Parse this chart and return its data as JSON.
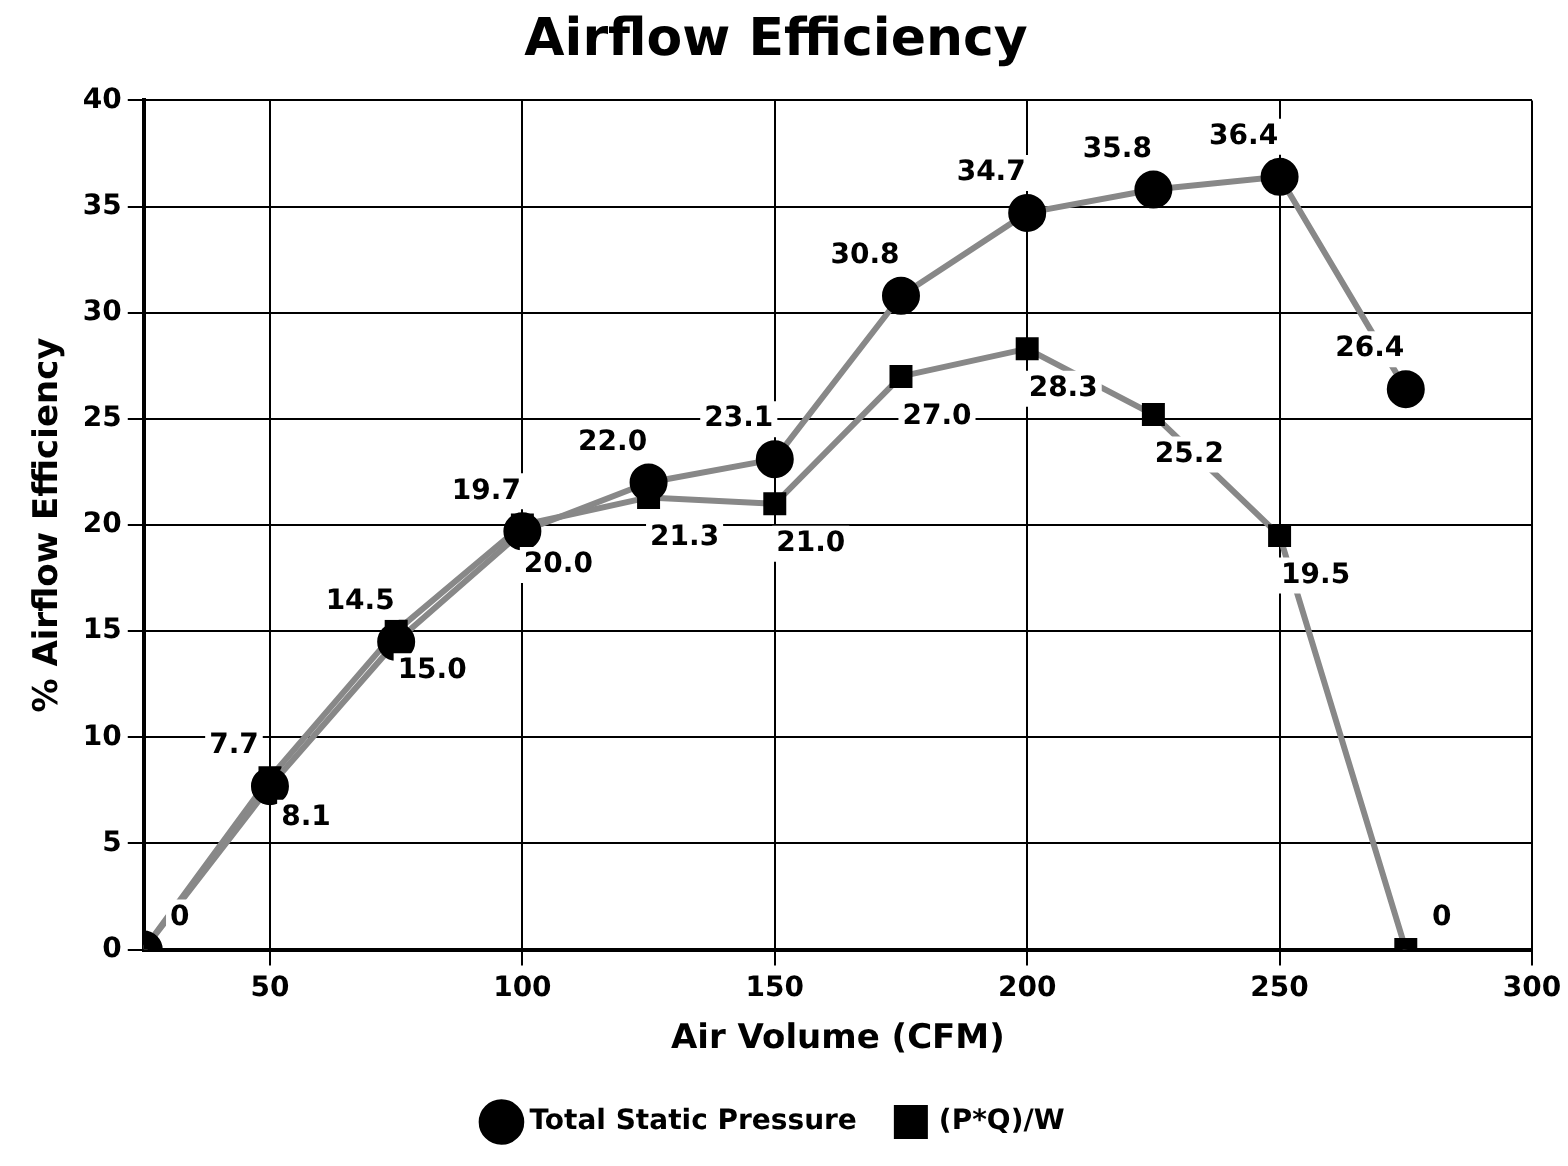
{
  "chart_data": {
    "type": "line",
    "title": "Airflow Efficiency",
    "xlabel": "Air Volume (CFM)",
    "ylabel": "% Airflow Efficiency",
    "x": [
      25,
      50,
      75,
      100,
      125,
      150,
      175,
      200,
      225,
      250,
      275
    ],
    "xlim": [
      25,
      300
    ],
    "xticks": [
      50,
      100,
      150,
      200,
      250,
      300
    ],
    "ylim": [
      0,
      40
    ],
    "yticks": [
      0,
      5,
      10,
      15,
      20,
      25,
      30,
      35,
      40
    ],
    "grid": true,
    "legend": "bottom",
    "line_style": "solid",
    "series": [
      {
        "name": "Total Static Pressure",
        "color": "#888888",
        "marker": "circle",
        "values": [
          0,
          7.7,
          14.5,
          19.7,
          22.0,
          23.1,
          30.8,
          34.7,
          35.8,
          36.4,
          26.4
        ],
        "value_labels": [
          null,
          "7.7",
          "14.5",
          "19.7",
          "22.0",
          "23.1",
          "30.8",
          "34.7",
          "35.8",
          "36.4",
          "26.4"
        ]
      },
      {
        "name": "(P*Q)/W",
        "color": "#888888",
        "marker": "square",
        "values": [
          0,
          8.1,
          15.0,
          20.0,
          21.3,
          21.0,
          27.0,
          28.3,
          25.2,
          19.5,
          0
        ],
        "value_labels": [
          "0",
          "8.1",
          "15.0",
          "20.0",
          "21.3",
          "21.0",
          "27.0",
          "28.3",
          "25.2",
          "19.5",
          "0"
        ]
      }
    ]
  }
}
